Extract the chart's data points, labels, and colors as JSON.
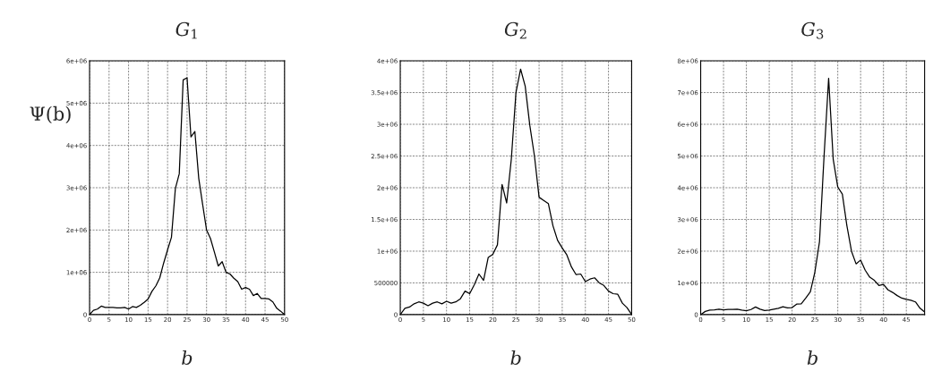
{
  "chart_data": [
    {
      "type": "line",
      "title": "G$_{1}$",
      "xlabel": "b",
      "ylabel": "Ψ(b)",
      "grid": true,
      "xlim": [
        0,
        50
      ],
      "xticks": [
        0,
        5,
        10,
        15,
        20,
        25,
        30,
        35,
        40,
        45,
        50
      ],
      "ylim": [
        0,
        6000000
      ],
      "yticks": [
        0,
        {
          "value": 1000000,
          "label": "1e+06"
        },
        {
          "value": 2000000,
          "label": "2e+06"
        },
        {
          "value": 3000000,
          "label": "3e+06"
        },
        {
          "value": 4000000,
          "label": "4e+06"
        },
        {
          "value": 5000000,
          "label": "5e+06"
        },
        {
          "value": 6000000,
          "label": "6e+06"
        }
      ],
      "series": [
        {
          "color": "#000000",
          "x": [
            0,
            1,
            2,
            3,
            4,
            5,
            6,
            7,
            8,
            9,
            10,
            11,
            12,
            13,
            14,
            15,
            16,
            17,
            18,
            19,
            20,
            21,
            22,
            23,
            24,
            25,
            26,
            27,
            28,
            29,
            30,
            31,
            32,
            33,
            34,
            35,
            36,
            37,
            38,
            39,
            40,
            41,
            42,
            43,
            44,
            45,
            46,
            47,
            48,
            49,
            50
          ],
          "values": [
            0,
            100000,
            130000,
            200000,
            170000,
            170000,
            170000,
            160000,
            160000,
            170000,
            130000,
            190000,
            170000,
            220000,
            290000,
            370000,
            550000,
            680000,
            870000,
            1220000,
            1530000,
            1830000,
            2980000,
            3330000,
            5550000,
            5600000,
            4200000,
            4330000,
            3220000,
            2600000,
            2000000,
            1800000,
            1480000,
            1150000,
            1250000,
            1000000,
            960000,
            860000,
            780000,
            600000,
            640000,
            600000,
            450000,
            500000,
            380000,
            380000,
            370000,
            300000,
            150000,
            80000,
            0
          ]
        }
      ]
    },
    {
      "type": "line",
      "title": "G$_{2}$",
      "xlabel": "b",
      "grid": true,
      "xlim": [
        0,
        50
      ],
      "xticks": [
        0,
        5,
        10,
        15,
        20,
        25,
        30,
        35,
        40,
        45,
        50
      ],
      "ylim": [
        0,
        4000000
      ],
      "yticks": [
        0,
        500000,
        {
          "value": 1000000,
          "label": "1e+06"
        },
        {
          "value": 1500000,
          "label": "1.5e+06"
        },
        {
          "value": 2000000,
          "label": "2e+06"
        },
        {
          "value": 2500000,
          "label": "2.5e+06"
        },
        {
          "value": 3000000,
          "label": "3e+06"
        },
        {
          "value": 3500000,
          "label": "3.5e+06"
        },
        {
          "value": 4000000,
          "label": "4e+06"
        }
      ],
      "series": [
        {
          "color": "#000000",
          "x": [
            0,
            1,
            2,
            3,
            4,
            5,
            6,
            7,
            8,
            9,
            10,
            11,
            12,
            13,
            14,
            15,
            16,
            17,
            18,
            19,
            20,
            21,
            22,
            23,
            24,
            25,
            26,
            27,
            28,
            29,
            30,
            31,
            32,
            33,
            34,
            35,
            36,
            37,
            38,
            39,
            40,
            41,
            42,
            43,
            44,
            45,
            46,
            47,
            48,
            49,
            50
          ],
          "values": [
            0,
            100000,
            120000,
            170000,
            200000,
            180000,
            140000,
            180000,
            200000,
            170000,
            210000,
            180000,
            200000,
            250000,
            370000,
            330000,
            470000,
            640000,
            540000,
            900000,
            950000,
            1100000,
            2050000,
            1760000,
            2450000,
            3500000,
            3870000,
            3600000,
            2980000,
            2500000,
            1850000,
            1800000,
            1750000,
            1400000,
            1170000,
            1050000,
            940000,
            750000,
            630000,
            640000,
            520000,
            560000,
            580000,
            500000,
            460000,
            370000,
            330000,
            320000,
            180000,
            110000,
            0
          ]
        }
      ]
    },
    {
      "type": "line",
      "title": "G$_{3}$",
      "xlabel": "b",
      "grid": true,
      "xlim": [
        0,
        49
      ],
      "xticks": [
        0,
        5,
        10,
        15,
        20,
        25,
        30,
        35,
        40,
        45
      ],
      "ylim": [
        0,
        8000000
      ],
      "yticks": [
        0,
        {
          "value": 1000000,
          "label": "1e+06"
        },
        {
          "value": 2000000,
          "label": "2e+06"
        },
        {
          "value": 3000000,
          "label": "3e+06"
        },
        {
          "value": 4000000,
          "label": "4e+06"
        },
        {
          "value": 5000000,
          "label": "5e+06"
        },
        {
          "value": 6000000,
          "label": "6e+06"
        },
        {
          "value": 7000000,
          "label": "7e+06"
        },
        {
          "value": 8000000,
          "label": "8e+06"
        }
      ],
      "series": [
        {
          "color": "#000000",
          "x": [
            0,
            1,
            2,
            3,
            4,
            5,
            6,
            7,
            8,
            9,
            10,
            11,
            12,
            13,
            14,
            15,
            16,
            17,
            18,
            19,
            20,
            21,
            22,
            23,
            24,
            25,
            26,
            27,
            28,
            29,
            30,
            31,
            32,
            33,
            34,
            35,
            36,
            37,
            38,
            39,
            40,
            41,
            42,
            43,
            44,
            45,
            46,
            47,
            48,
            49
          ],
          "values": [
            0,
            100000,
            140000,
            150000,
            170000,
            150000,
            160000,
            160000,
            170000,
            140000,
            120000,
            160000,
            240000,
            170000,
            130000,
            140000,
            170000,
            200000,
            250000,
            210000,
            220000,
            330000,
            340000,
            520000,
            720000,
            1350000,
            2300000,
            5000000,
            7450000,
            4900000,
            4020000,
            3800000,
            2800000,
            2000000,
            1600000,
            1720000,
            1400000,
            1180000,
            1080000,
            920000,
            950000,
            780000,
            700000,
            600000,
            520000,
            480000,
            450000,
            400000,
            200000,
            80000
          ]
        }
      ]
    }
  ]
}
